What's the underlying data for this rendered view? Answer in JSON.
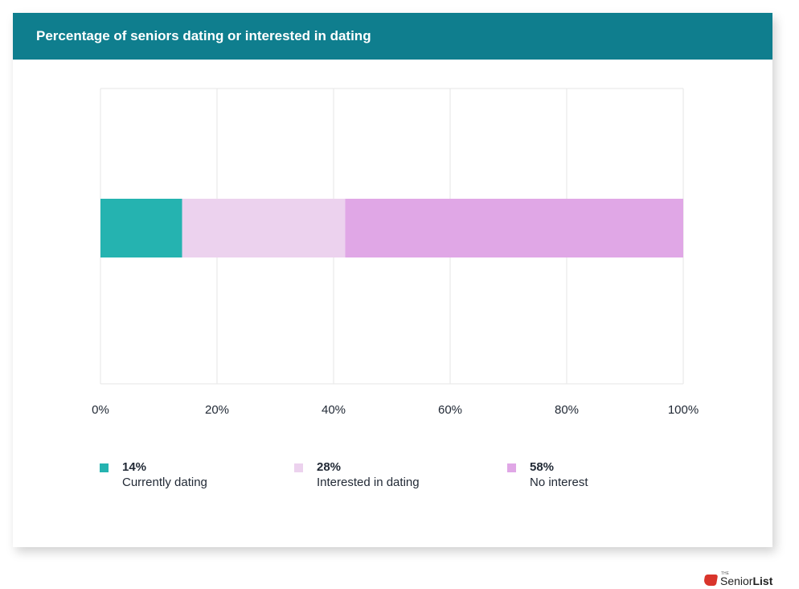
{
  "header": {
    "title": "Percentage of seniors dating or interested in dating"
  },
  "chart_data": {
    "type": "bar",
    "orientation": "horizontal",
    "stacked": true,
    "title": "Percentage of seniors dating or interested in dating",
    "xlabel": "",
    "ylabel": "",
    "xlim": [
      0,
      100
    ],
    "x_ticks": [
      "0%",
      "20%",
      "40%",
      "60%",
      "80%",
      "100%"
    ],
    "x_tick_values": [
      0,
      20,
      40,
      60,
      80,
      100
    ],
    "grid": true,
    "legend_position": "bottom",
    "series": [
      {
        "name": "Currently dating",
        "value": 14,
        "value_label": "14%",
        "color": "#25b3b0"
      },
      {
        "name": "Interested in dating",
        "value": 28,
        "value_label": "28%",
        "color": "#ecd2ee"
      },
      {
        "name": "No interest",
        "value": 58,
        "value_label": "58%",
        "color": "#e0a7e6"
      }
    ]
  },
  "brand": {
    "prefix": "THE",
    "name_light": "Senior",
    "name_bold": "List",
    "icon": "senior-list-logo-icon",
    "color": "#d9342b"
  }
}
